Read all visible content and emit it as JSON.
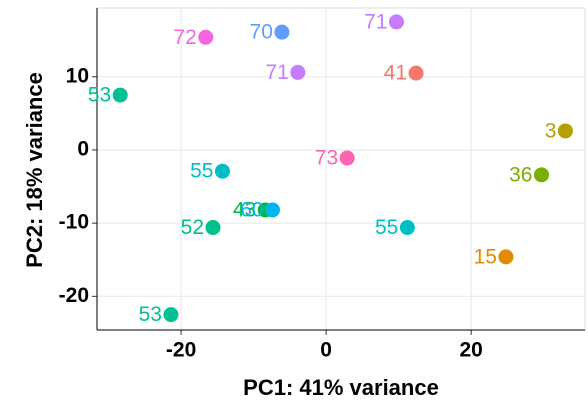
{
  "chart_data": {
    "type": "scatter",
    "x_label": "PC1: 41% variance",
    "y_label": "PC2: 18% variance",
    "point_labels": [
      "72",
      "70",
      "71",
      "71",
      "41",
      "53",
      "3",
      "73",
      "55",
      "36",
      "43",
      "60",
      "52",
      "55",
      "15",
      "53"
    ],
    "x": [
      -16.6,
      -6.1,
      9.7,
      -3.9,
      12.4,
      -28.4,
      33.0,
      2.9,
      -14.3,
      29.7,
      -8.4,
      -7.4,
      -15.6,
      11.2,
      24.8,
      -21.4
    ],
    "y": [
      15.4,
      16.1,
      17.5,
      10.6,
      10.5,
      7.5,
      2.6,
      -1.1,
      -2.9,
      -3.4,
      -8.2,
      -8.2,
      -10.6,
      -10.6,
      -14.6,
      -22.5
    ],
    "colors": [
      "#f564e3",
      "#619cff",
      "#c77cff",
      "#c77cff",
      "#f8766d",
      "#00c094",
      "#b79f00",
      "#ff64b0",
      "#00bfc4",
      "#7cae00",
      "#00ba38",
      "#00b4f0",
      "#00c08b",
      "#00bfc4",
      "#de8c00",
      "#00c094"
    ],
    "xlim": [
      -31.6,
      35.7
    ],
    "ylim": [
      -24.6,
      19.4
    ],
    "xticks": [
      -20,
      0,
      20
    ],
    "yticks": [
      -20,
      -10,
      0,
      10
    ],
    "grid": true
  }
}
